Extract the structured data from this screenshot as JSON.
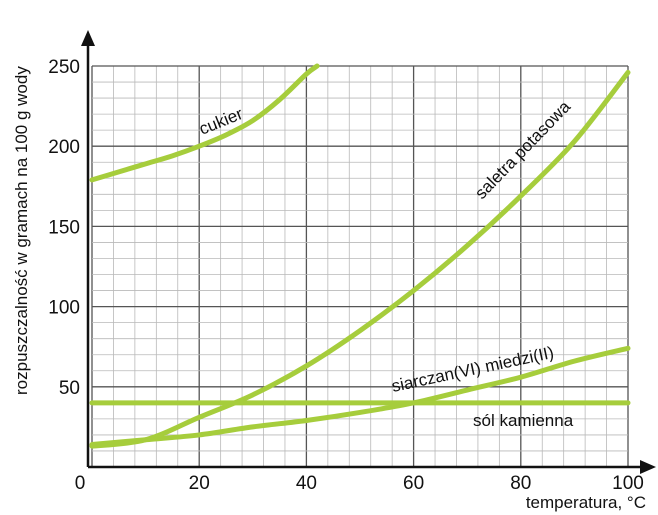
{
  "chart_data": {
    "type": "line",
    "title": "",
    "xlabel": "temperatura, °C",
    "ylabel": "rozpuszczalność w gramach na 100 g wody",
    "xlim": [
      0,
      100
    ],
    "ylim": [
      0,
      250
    ],
    "x_ticks": [
      0,
      20,
      40,
      60,
      80,
      100
    ],
    "y_ticks": [
      0,
      50,
      100,
      150,
      200,
      250
    ],
    "x_tick_labels": [
      "0",
      "20",
      "40",
      "60",
      "80",
      "100"
    ],
    "y_tick_labels": [
      "",
      "50",
      "100",
      "150",
      "200",
      "250"
    ],
    "grid": true,
    "line_color": "#a6cd3c",
    "series": [
      {
        "name": "cukier",
        "x": [
          0,
          5,
          10,
          15,
          20,
          25,
          30,
          35,
          40,
          42
        ],
        "y": [
          179,
          184,
          189,
          194,
          200,
          207,
          216,
          229,
          245,
          250
        ]
      },
      {
        "name": "saletra potasowa",
        "x": [
          0,
          10,
          20,
          30,
          40,
          50,
          60,
          70,
          80,
          90,
          100
        ],
        "y": [
          13,
          17,
          31,
          45,
          63,
          85,
          110,
          138,
          169,
          203,
          246
        ]
      },
      {
        "name": "siarczan(VI) miedzi(II)",
        "x": [
          0,
          10,
          20,
          30,
          40,
          50,
          60,
          70,
          80,
          90,
          100
        ],
        "y": [
          14,
          17,
          20,
          25,
          29,
          34,
          40,
          48,
          56,
          66,
          74
        ]
      },
      {
        "name": "sól kamienna",
        "x": [
          0,
          20,
          40,
          60,
          80,
          100
        ],
        "y": [
          40,
          40,
          40,
          40,
          40,
          40
        ]
      }
    ]
  }
}
